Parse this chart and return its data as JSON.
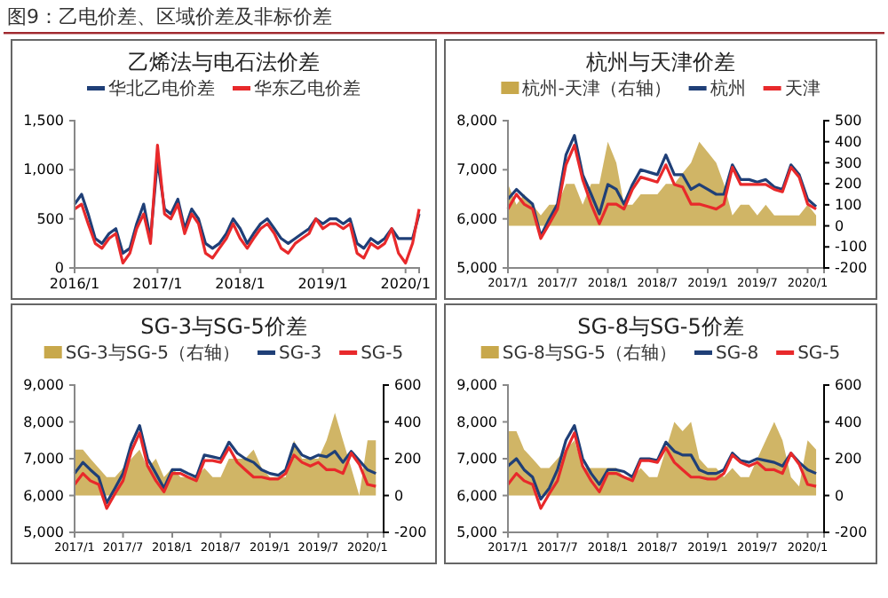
{
  "chart_data": [
    {
      "type": "other",
      "title": "图9：乙电价差、区域价差及非标价差"
    },
    {
      "type": "line",
      "title": "乙烯法与电石法价差",
      "legend": "top",
      "x": [
        "2016-01",
        "2016-02",
        "2016-03",
        "2016-04",
        "2016-05",
        "2016-06",
        "2016-07",
        "2016-08",
        "2016-09",
        "2016-10",
        "2016-11",
        "2016-12",
        "2017-01",
        "2017-02",
        "2017-03",
        "2017-04",
        "2017-05",
        "2017-06",
        "2017-07",
        "2017-08",
        "2017-09",
        "2017-10",
        "2017-11",
        "2017-12",
        "2018-01",
        "2018-02",
        "2018-03",
        "2018-04",
        "2018-05",
        "2018-06",
        "2018-07",
        "2018-08",
        "2018-09",
        "2018-10",
        "2018-11",
        "2018-12",
        "2019-01",
        "2019-02",
        "2019-03",
        "2019-04",
        "2019-05",
        "2019-06",
        "2019-07",
        "2019-08",
        "2019-09",
        "2019-10",
        "2019-11",
        "2019-12",
        "2020-01",
        "2020-02",
        "2020-03"
      ],
      "xlim": [
        "2016-01",
        "2020-03"
      ],
      "xticks": [
        {
          "value": "2016-01",
          "label": "2016/1"
        },
        {
          "value": "2017-01",
          "label": "2017/1"
        },
        {
          "value": "2018-01",
          "label": "2018/1"
        },
        {
          "value": "2019-01",
          "label": "2019/1"
        },
        {
          "value": "2020-01",
          "label": "2020/1"
        }
      ],
      "ylim": [
        0,
        1500
      ],
      "yticks": [
        0,
        500,
        {
          "value": 1000,
          "label": "1,000"
        },
        {
          "value": 1500,
          "label": "1,500"
        }
      ],
      "series": [
        {
          "name": "华北乙电价差",
          "color": "#1f3f77",
          "values": [
            650,
            750,
            550,
            300,
            250,
            350,
            400,
            150,
            200,
            450,
            650,
            300,
            1100,
            600,
            550,
            700,
            400,
            600,
            500,
            250,
            200,
            250,
            350,
            500,
            400,
            250,
            350,
            450,
            500,
            400,
            300,
            250,
            300,
            350,
            400,
            500,
            450,
            500,
            500,
            450,
            500,
            250,
            200,
            300,
            250,
            300,
            400,
            300,
            300,
            300,
            550
          ]
        },
        {
          "name": "华东乙电价差",
          "color": "#e8292b",
          "values": [
            600,
            650,
            450,
            250,
            200,
            300,
            350,
            50,
            150,
            400,
            550,
            250,
            1250,
            550,
            500,
            650,
            350,
            550,
            450,
            150,
            100,
            200,
            300,
            450,
            300,
            200,
            300,
            400,
            450,
            350,
            200,
            150,
            250,
            300,
            350,
            500,
            400,
            450,
            450,
            400,
            450,
            150,
            100,
            250,
            200,
            250,
            400,
            150,
            50,
            250,
            600
          ]
        }
      ]
    },
    {
      "type": "line",
      "title": "杭州与天津价差",
      "legend": "top",
      "x": [
        "2017-01",
        "2017-02",
        "2017-03",
        "2017-04",
        "2017-05",
        "2017-06",
        "2017-07",
        "2017-08",
        "2017-09",
        "2017-10",
        "2017-11",
        "2017-12",
        "2018-01",
        "2018-02",
        "2018-03",
        "2018-04",
        "2018-05",
        "2018-06",
        "2018-07",
        "2018-08",
        "2018-09",
        "2018-10",
        "2018-11",
        "2018-12",
        "2019-01",
        "2019-02",
        "2019-03",
        "2019-04",
        "2019-05",
        "2019-06",
        "2019-07",
        "2019-08",
        "2019-09",
        "2019-10",
        "2019-11",
        "2019-12",
        "2020-01",
        "2020-02"
      ],
      "xlim": [
        "2017-01",
        "2020-03"
      ],
      "xticks": [
        {
          "value": "2017-01",
          "label": "2017/1"
        },
        {
          "value": "2017-07",
          "label": "2017/7"
        },
        {
          "value": "2018-01",
          "label": "2018/1"
        },
        {
          "value": "2018-07",
          "label": "2018/7"
        },
        {
          "value": "2019-01",
          "label": "2019/1"
        },
        {
          "value": "2019-07",
          "label": "2019/7"
        },
        {
          "value": "2020-01",
          "label": "2020/1"
        }
      ],
      "ylim": [
        5000,
        8000
      ],
      "yticks": [
        {
          "value": 5000,
          "label": "5,000"
        },
        {
          "value": 6000,
          "label": "6,000"
        },
        {
          "value": 7000,
          "label": "7,000"
        },
        {
          "value": 8000,
          "label": "8,000"
        }
      ],
      "y2lim": [
        -200,
        500
      ],
      "y2ticks": [
        -200,
        -100,
        0,
        100,
        200,
        300,
        400,
        500
      ],
      "series": [
        {
          "name": "杭州-天津（右轴）",
          "type": "area",
          "axis": "y2",
          "color": "#c8a84b",
          "values": [
            200,
            100,
            150,
            100,
            50,
            100,
            100,
            200,
            200,
            100,
            200,
            200,
            400,
            300,
            100,
            100,
            150,
            150,
            150,
            200,
            200,
            250,
            300,
            400,
            350,
            300,
            200,
            50,
            100,
            100,
            50,
            100,
            50,
            50,
            50,
            50,
            100,
            50
          ]
        },
        {
          "name": "杭州",
          "color": "#1f3f77",
          "values": [
            6400,
            6600,
            6450,
            6300,
            5650,
            6000,
            6300,
            7300,
            7700,
            6900,
            6500,
            6100,
            6700,
            6600,
            6300,
            6700,
            7000,
            6950,
            6900,
            7300,
            6900,
            6900,
            6600,
            6700,
            6600,
            6500,
            6500,
            7100,
            6800,
            6800,
            6750,
            6800,
            6650,
            6600,
            7100,
            6900,
            6400,
            6250
          ]
        },
        {
          "name": "天津",
          "color": "#e8292b",
          "values": [
            6200,
            6500,
            6300,
            6200,
            5600,
            5900,
            6200,
            7100,
            7500,
            6800,
            6300,
            5900,
            6300,
            6300,
            6200,
            6600,
            6850,
            6800,
            6750,
            7100,
            6700,
            6650,
            6300,
            6300,
            6250,
            6200,
            6300,
            7050,
            6700,
            6700,
            6700,
            6700,
            6600,
            6550,
            7050,
            6850,
            6300,
            6200
          ]
        }
      ]
    },
    {
      "type": "line",
      "title": "SG-3与SG-5价差",
      "legend": "top",
      "x": [
        "2017-01",
        "2017-02",
        "2017-03",
        "2017-04",
        "2017-05",
        "2017-06",
        "2017-07",
        "2017-08",
        "2017-09",
        "2017-10",
        "2017-11",
        "2017-12",
        "2018-01",
        "2018-02",
        "2018-03",
        "2018-04",
        "2018-05",
        "2018-06",
        "2018-07",
        "2018-08",
        "2018-09",
        "2018-10",
        "2018-11",
        "2018-12",
        "2019-01",
        "2019-02",
        "2019-03",
        "2019-04",
        "2019-05",
        "2019-06",
        "2019-07",
        "2019-08",
        "2019-09",
        "2019-10",
        "2019-11",
        "2019-12",
        "2020-01",
        "2020-02"
      ],
      "xlim": [
        "2017-01",
        "2020-03"
      ],
      "xticks": [
        {
          "value": "2017-01",
          "label": "2017/1"
        },
        {
          "value": "2017-07",
          "label": "2017/7"
        },
        {
          "value": "2018-01",
          "label": "2018/1"
        },
        {
          "value": "2018-07",
          "label": "2018/7"
        },
        {
          "value": "2019-01",
          "label": "2019/1"
        },
        {
          "value": "2019-07",
          "label": "2019/7"
        },
        {
          "value": "2020-01",
          "label": "2020/1"
        }
      ],
      "ylim": [
        5000,
        9000
      ],
      "yticks": [
        {
          "value": 5000,
          "label": "5,000"
        },
        {
          "value": 6000,
          "label": "6,000"
        },
        {
          "value": 7000,
          "label": "7,000"
        },
        {
          "value": 8000,
          "label": "8,000"
        },
        {
          "value": 9000,
          "label": "9,000"
        }
      ],
      "y2lim": [
        -200,
        600
      ],
      "y2ticks": [
        -200,
        0,
        200,
        400,
        600
      ],
      "series": [
        {
          "name": "SG-3与SG-5（右轴）",
          "type": "area",
          "axis": "y2",
          "color": "#c8a84b",
          "values": [
            250,
            250,
            200,
            150,
            100,
            100,
            150,
            200,
            250,
            150,
            200,
            100,
            150,
            100,
            100,
            100,
            150,
            100,
            100,
            200,
            200,
            200,
            250,
            150,
            100,
            100,
            100,
            300,
            200,
            200,
            200,
            300,
            450,
            300,
            150,
            0,
            300,
            300
          ]
        },
        {
          "name": "SG-3",
          "color": "#1f3f77",
          "values": [
            6600,
            6900,
            6700,
            6500,
            5800,
            6200,
            6600,
            7400,
            7900,
            7000,
            6600,
            6200,
            6700,
            6700,
            6600,
            6500,
            7100,
            7050,
            7000,
            7450,
            7150,
            7000,
            6900,
            6700,
            6600,
            6550,
            6700,
            7400,
            7100,
            7000,
            7100,
            7050,
            7200,
            6900,
            7200,
            6950,
            6700,
            6600
          ]
        },
        {
          "name": "SG-5",
          "color": "#e8292b",
          "values": [
            6300,
            6600,
            6400,
            6300,
            5650,
            6050,
            6400,
            7200,
            7700,
            6800,
            6400,
            6100,
            6600,
            6600,
            6500,
            6400,
            6950,
            6950,
            6900,
            7300,
            6900,
            6700,
            6500,
            6500,
            6450,
            6450,
            6600,
            7100,
            6900,
            6800,
            6900,
            6700,
            6700,
            6600,
            7150,
            6850,
            6300,
            6250
          ]
        }
      ]
    },
    {
      "type": "line",
      "title": "SG-8与SG-5价差",
      "legend": "top",
      "x": [
        "2017-01",
        "2017-02",
        "2017-03",
        "2017-04",
        "2017-05",
        "2017-06",
        "2017-07",
        "2017-08",
        "2017-09",
        "2017-10",
        "2017-11",
        "2017-12",
        "2018-01",
        "2018-02",
        "2018-03",
        "2018-04",
        "2018-05",
        "2018-06",
        "2018-07",
        "2018-08",
        "2018-09",
        "2018-10",
        "2018-11",
        "2018-12",
        "2019-01",
        "2019-02",
        "2019-03",
        "2019-04",
        "2019-05",
        "2019-06",
        "2019-07",
        "2019-08",
        "2019-09",
        "2019-10",
        "2019-11",
        "2019-12",
        "2020-01",
        "2020-02"
      ],
      "xlim": [
        "2017-01",
        "2020-03"
      ],
      "xticks": [
        {
          "value": "2017-01",
          "label": "2017/1"
        },
        {
          "value": "2017-07",
          "label": "2017/7"
        },
        {
          "value": "2018-01",
          "label": "2018/1"
        },
        {
          "value": "2018-07",
          "label": "2018/7"
        },
        {
          "value": "2019-01",
          "label": "2019/1"
        },
        {
          "value": "2019-07",
          "label": "2019/7"
        },
        {
          "value": "2020-01",
          "label": "2020/1"
        }
      ],
      "ylim": [
        5000,
        9000
      ],
      "yticks": [
        {
          "value": 5000,
          "label": "5,000"
        },
        {
          "value": 6000,
          "label": "6,000"
        },
        {
          "value": 7000,
          "label": "7,000"
        },
        {
          "value": 8000,
          "label": "8,000"
        },
        {
          "value": 9000,
          "label": "9,000"
        }
      ],
      "y2lim": [
        -200,
        600
      ],
      "y2ticks": [
        -200,
        0,
        200,
        400,
        600
      ],
      "series": [
        {
          "name": "SG-8与SG-5（右轴）",
          "type": "area",
          "axis": "y2",
          "color": "#c8a84b",
          "values": [
            350,
            350,
            250,
            200,
            150,
            150,
            200,
            250,
            300,
            150,
            150,
            150,
            150,
            150,
            100,
            100,
            150,
            100,
            100,
            250,
            400,
            350,
            400,
            200,
            150,
            150,
            100,
            150,
            100,
            100,
            200,
            300,
            400,
            300,
            100,
            50,
            300,
            250
          ]
        },
        {
          "name": "SG-8",
          "color": "#1f3f77",
          "values": [
            6800,
            7000,
            6700,
            6500,
            5900,
            6200,
            6700,
            7500,
            7900,
            7000,
            6600,
            6300,
            6700,
            6700,
            6650,
            6500,
            7000,
            7000,
            6950,
            7450,
            7200,
            7100,
            7100,
            6700,
            6600,
            6600,
            6700,
            7150,
            6950,
            6900,
            7000,
            6950,
            6900,
            6800,
            7150,
            6900,
            6700,
            6600
          ]
        },
        {
          "name": "SG-5",
          "color": "#e8292b",
          "values": [
            6300,
            6600,
            6400,
            6300,
            5650,
            6050,
            6400,
            7200,
            7700,
            6800,
            6400,
            6100,
            6600,
            6600,
            6500,
            6400,
            6950,
            6950,
            6900,
            7300,
            6900,
            6700,
            6500,
            6500,
            6450,
            6450,
            6600,
            7100,
            6900,
            6800,
            6900,
            6700,
            6700,
            6600,
            7150,
            6850,
            6300,
            6250
          ]
        }
      ]
    }
  ]
}
